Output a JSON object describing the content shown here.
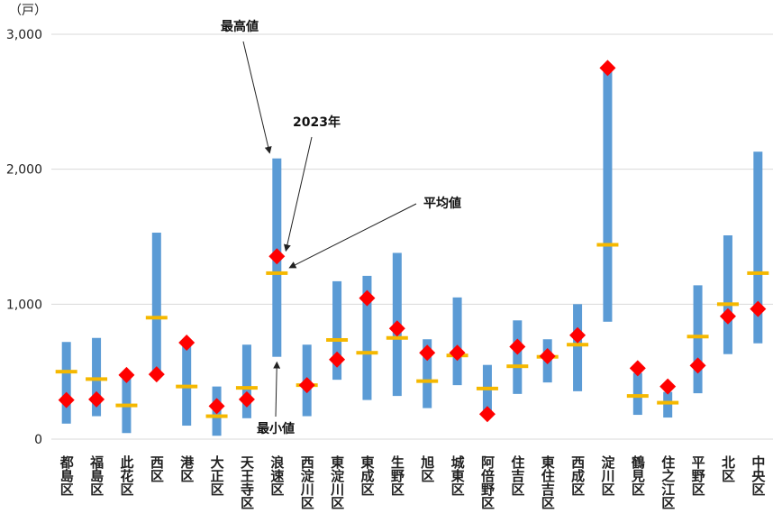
{
  "chart_data": {
    "type": "range-marker",
    "unit_label": "（戸）",
    "ylim": [
      0,
      3000
    ],
    "yticks": [
      0,
      1000,
      2000,
      3000
    ],
    "ytick_labels": [
      "0",
      "1,000",
      "2,000",
      "3,000"
    ],
    "grid": true,
    "categories": [
      "都島区",
      "福島区",
      "此花区",
      "西区",
      "港区",
      "大正区",
      "天王寺区",
      "浪速区",
      "西淀川区",
      "東淀川区",
      "東成区",
      "生野区",
      "旭区",
      "城東区",
      "阿倍野区",
      "住吉区",
      "東住吉区",
      "西成区",
      "淀川区",
      "鶴見区",
      "住之江区",
      "平野区",
      "北区",
      "中央区"
    ],
    "series": [
      {
        "name": "最高値",
        "values": [
          720,
          750,
          470,
          1530,
          690,
          390,
          700,
          2080,
          700,
          1170,
          1210,
          1380,
          740,
          1050,
          550,
          880,
          740,
          1000,
          2770,
          490,
          350,
          1140,
          1510,
          2130
        ]
      },
      {
        "name": "最小値",
        "values": [
          115,
          170,
          45,
          470,
          100,
          25,
          155,
          610,
          170,
          440,
          290,
          320,
          230,
          400,
          160,
          335,
          420,
          355,
          870,
          180,
          160,
          340,
          630,
          710
        ]
      },
      {
        "name": "平均値",
        "values": [
          500,
          445,
          250,
          900,
          390,
          170,
          380,
          1230,
          400,
          735,
          640,
          750,
          430,
          620,
          375,
          540,
          610,
          700,
          1440,
          320,
          270,
          760,
          1000,
          1230
        ]
      },
      {
        "name": "2023年",
        "values": [
          290,
          295,
          475,
          480,
          715,
          245,
          295,
          1355,
          400,
          590,
          1045,
          820,
          640,
          640,
          185,
          685,
          615,
          770,
          2750,
          525,
          390,
          545,
          910,
          965
        ]
      }
    ],
    "annotations": [
      {
        "text": "最高値",
        "series": "最高値",
        "category": "浪速区"
      },
      {
        "text": "2023年",
        "series": "2023年",
        "category": "浪速区"
      },
      {
        "text": "平均値",
        "series": "平均値",
        "category": "浪速区"
      },
      {
        "text": "最小値",
        "series": "最小値",
        "category": "浪速区"
      }
    ],
    "colors": {
      "range_bar": "#5B9BD5",
      "average": "#F5B800",
      "year_2023": "#FF0000",
      "grid": "#D9D9D9"
    }
  }
}
